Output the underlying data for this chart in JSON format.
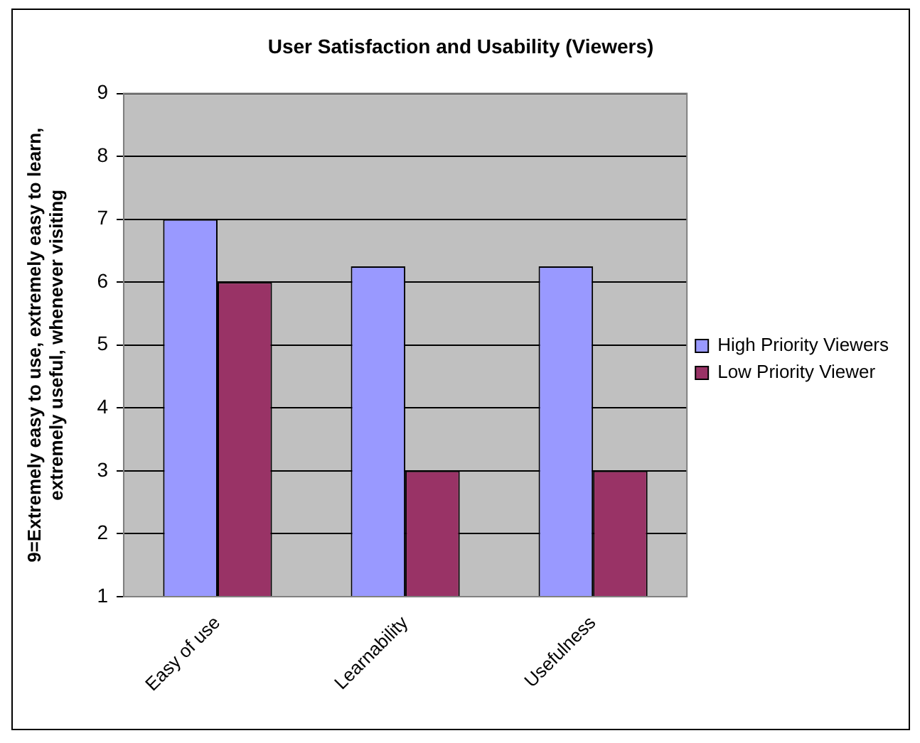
{
  "chart_data": {
    "type": "bar",
    "title": "User Satisfaction and Usability (Viewers)",
    "ylabel": "9=Extremely easy to use, extremely easy to learn, extremely useful, whenever visiting",
    "categories": [
      "Easy of use",
      "Learnability",
      "Usefulness"
    ],
    "series": [
      {
        "name": "High Priority Viewers",
        "color": "#9999ff",
        "values": [
          7,
          6.25,
          6.25
        ]
      },
      {
        "name": "Low Priority Viewer",
        "color": "#993366",
        "values": [
          6,
          3,
          3
        ]
      }
    ],
    "ylim": [
      1,
      9
    ],
    "yticks": [
      1,
      2,
      3,
      4,
      5,
      6,
      7,
      8,
      9
    ],
    "grid": "y",
    "legend": "right"
  }
}
